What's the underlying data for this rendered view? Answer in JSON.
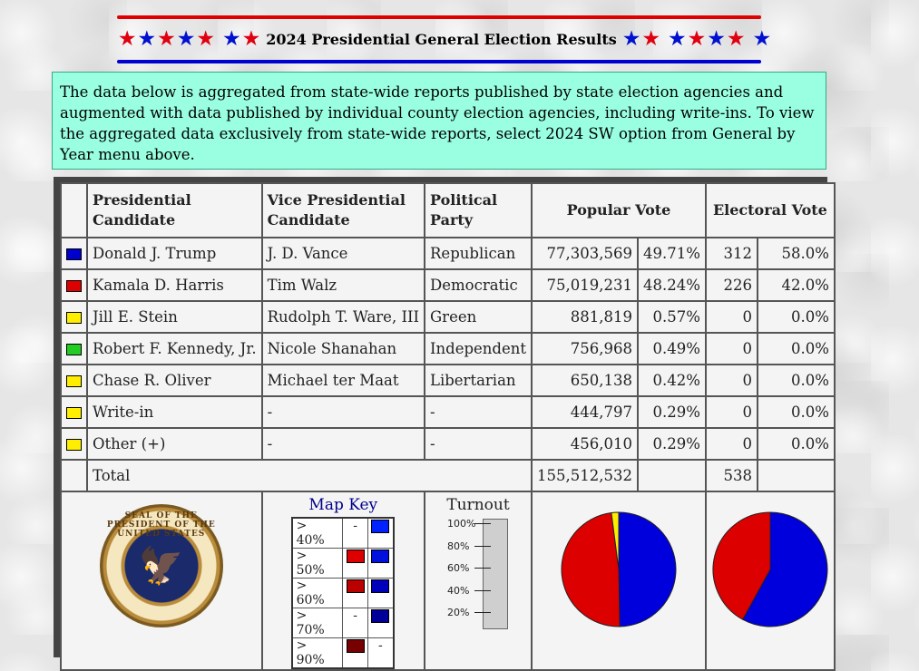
{
  "header": {
    "title": "2024 Presidential General Election Results",
    "stars_left": [
      "red",
      "blue",
      "red",
      "blue",
      "red",
      "gap",
      "blue",
      "red"
    ],
    "stars_right": [
      "blue",
      "red",
      "gap",
      "blue",
      "red",
      "blue",
      "red",
      "gap",
      "blue"
    ],
    "star_glyph": "★",
    "colors": {
      "red": "#e00010",
      "blue": "#0010d0"
    }
  },
  "info_text": "The data below is aggregated from state-wide reports published by state election agencies and augmented with data published by individual county election agencies, including write-ins. To view the aggregated data exclusively from state-wide reports, select 2024 SW option from General by Year menu above.",
  "table": {
    "headers": {
      "candidate": "Presidential Candidate",
      "vp": "Vice Presidential Candidate",
      "party": "Political Party",
      "popular": "Popular Vote",
      "electoral": "Electoral Vote"
    },
    "rows": [
      {
        "color": "#0000cc",
        "candidate": "Donald J. Trump",
        "vp": "J. D. Vance",
        "party": "Republican",
        "votes": "77,303,569",
        "pct": "49.71%",
        "ev": "312",
        "ev_pct": "58.0%"
      },
      {
        "color": "#dd0000",
        "candidate": "Kamala D. Harris",
        "vp": "Tim Walz",
        "party": "Democratic",
        "votes": "75,019,231",
        "pct": "48.24%",
        "ev": "226",
        "ev_pct": "42.0%"
      },
      {
        "color": "#ffee00",
        "candidate": "Jill E. Stein",
        "vp": "Rudolph T. Ware, III",
        "party": "Green",
        "votes": "881,819",
        "pct": "0.57%",
        "ev": "0",
        "ev_pct": "0.0%"
      },
      {
        "color": "#22cc22",
        "candidate": "Robert F. Kennedy, Jr.",
        "vp": "Nicole Shanahan",
        "party": "Independent",
        "votes": "756,968",
        "pct": "0.49%",
        "ev": "0",
        "ev_pct": "0.0%"
      },
      {
        "color": "#ffee00",
        "candidate": "Chase R. Oliver",
        "vp": "Michael ter Maat",
        "party": "Libertarian",
        "votes": "650,138",
        "pct": "0.42%",
        "ev": "0",
        "ev_pct": "0.0%"
      },
      {
        "color": "#ffee00",
        "candidate": "Write-in",
        "vp": "-",
        "party": "-",
        "votes": "444,797",
        "pct": "0.29%",
        "ev": "0",
        "ev_pct": "0.0%"
      },
      {
        "color": "#ffee00",
        "candidate": "Other (+)",
        "vp": "-",
        "party": "-",
        "votes": "456,010",
        "pct": "0.29%",
        "ev": "0",
        "ev_pct": "0.0%"
      }
    ],
    "total": {
      "label": "Total",
      "votes": "155,512,532",
      "ev": "538"
    }
  },
  "seal": {
    "text": "SEAL OF THE PRESIDENT OF THE UNITED STATES"
  },
  "map_key": {
    "title": "Map Key",
    "rows": [
      {
        "label": "> 40%",
        "a": "-",
        "b_color": "#0022ff"
      },
      {
        "label": "> 50%",
        "a_color": "#dd0000",
        "b_color": "#0011dd"
      },
      {
        "label": "> 60%",
        "a_color": "#bb0000",
        "b_color": "#0000bb"
      },
      {
        "label": "> 70%",
        "a": "-",
        "b_color": "#000099"
      },
      {
        "label": "> 90%",
        "a_color": "#770000",
        "b": "-"
      }
    ]
  },
  "turnout": {
    "title": "Turnout",
    "ticks": [
      "100%",
      "80%",
      "60%",
      "40%",
      "20%"
    ]
  },
  "chart_data": [
    {
      "type": "pie",
      "categories": [
        "Trump",
        "Harris",
        "Other"
      ],
      "values": [
        49.71,
        48.24,
        2.05
      ],
      "colors": [
        "#0000dd",
        "#dd0000",
        "#ffee00"
      ]
    },
    {
      "type": "pie",
      "categories": [
        "Trump",
        "Harris"
      ],
      "values": [
        312,
        226
      ],
      "colors": [
        "#0000dd",
        "#dd0000"
      ]
    }
  ]
}
